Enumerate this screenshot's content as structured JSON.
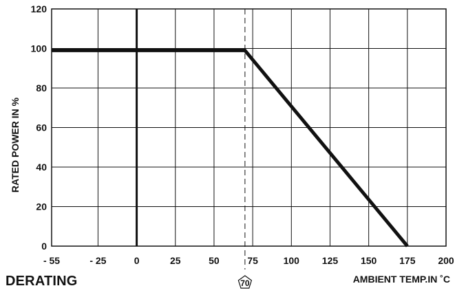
{
  "chart_data": {
    "type": "line",
    "title": "DERATING",
    "xlabel": "AMBIENT TEMP.IN ˚C",
    "ylabel": "RATED POWER IN %",
    "xlim": [
      -55,
      200
    ],
    "ylim": [
      0,
      120
    ],
    "x_ticks": [
      "- 55",
      "- 25",
      "0",
      "25",
      "50",
      "75",
      "100",
      "125",
      "150",
      "175",
      "200"
    ],
    "y_ticks": [
      "0",
      "20",
      "40",
      "60",
      "80",
      "100",
      "120"
    ],
    "x_tick_values": [
      -55,
      -25,
      0,
      25,
      50,
      75,
      100,
      125,
      150,
      175,
      200
    ],
    "y_tick_values": [
      0,
      20,
      40,
      60,
      80,
      100,
      120
    ],
    "grid": true,
    "series": [
      {
        "x": [
          -55,
          70,
          175
        ],
        "y": [
          99,
          99,
          0
        ]
      }
    ],
    "reference_line": {
      "x": 70,
      "label": "70"
    },
    "zero_line_x": 0
  }
}
